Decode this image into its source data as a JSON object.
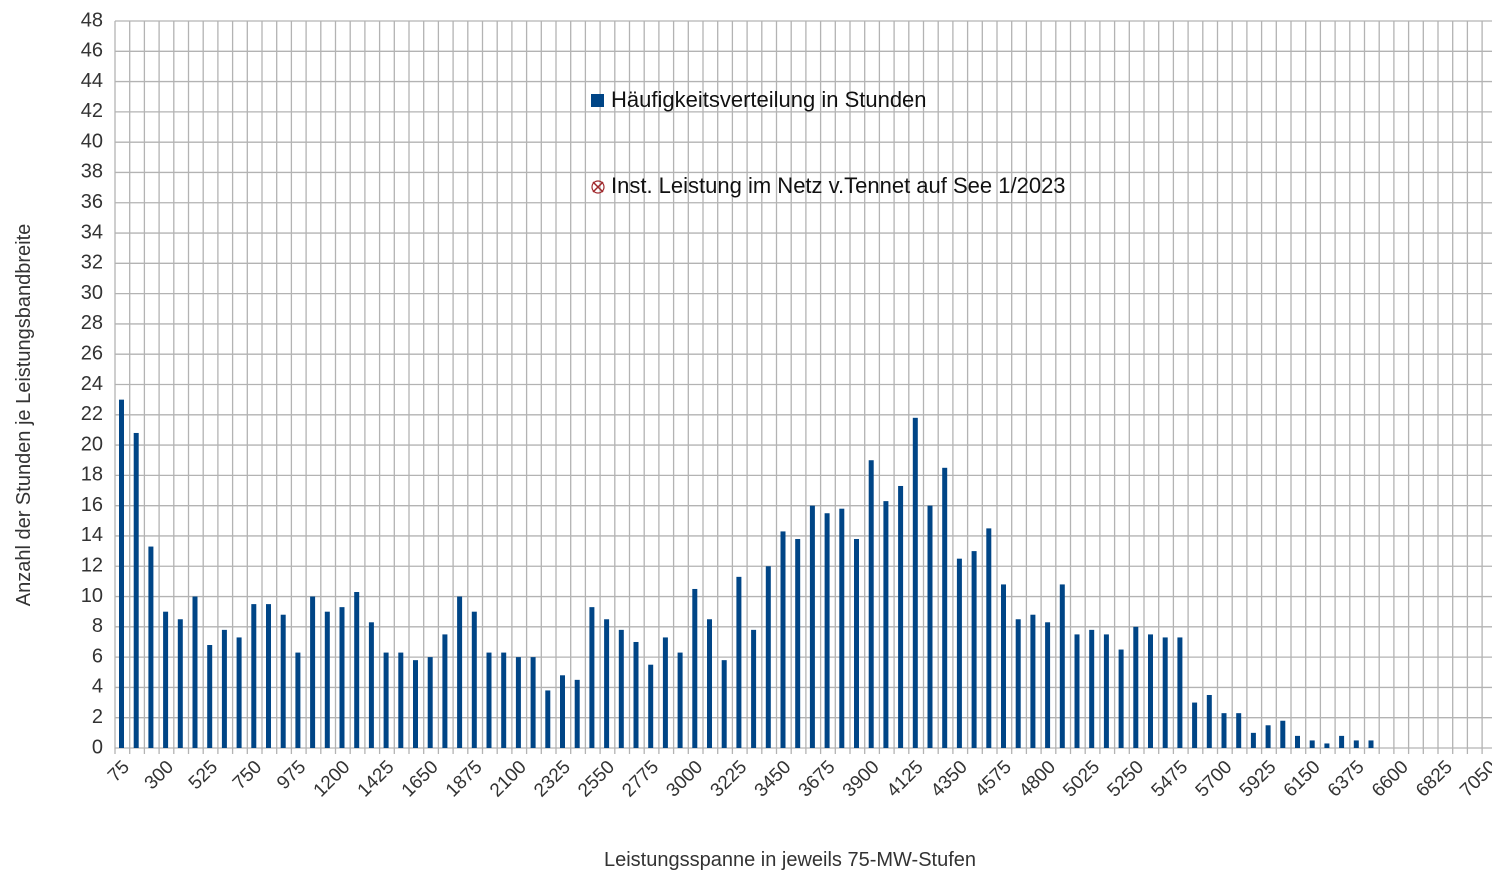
{
  "chart_data": {
    "type": "bar",
    "x_label": "Leistungsspanne in jeweils 75-MW-Stufen",
    "y_label": "Anzahl der Stunden je Leistungsbandbreite",
    "categories": [
      "75",
      null,
      null,
      "300",
      null,
      null,
      "525",
      null,
      null,
      "750",
      null,
      null,
      "975",
      null,
      null,
      "1200",
      null,
      null,
      "1425",
      null,
      null,
      "1650",
      null,
      null,
      "1875",
      null,
      null,
      "2100",
      null,
      null,
      "2325",
      null,
      null,
      "2550",
      null,
      null,
      "2775",
      null,
      null,
      "3000",
      null,
      null,
      "3225",
      null,
      null,
      "3450",
      null,
      null,
      "3675",
      null,
      null,
      "3900",
      null,
      null,
      "4125",
      null,
      null,
      "4350",
      null,
      null,
      "4575",
      null,
      null,
      "4800",
      null,
      null,
      "5025",
      null,
      null,
      "5250",
      null,
      null,
      "5475",
      null,
      null,
      "5700",
      null,
      null,
      "5925",
      null,
      null,
      "6150",
      null,
      null,
      "6375",
      null,
      null,
      "6600",
      null,
      null,
      "6825",
      null,
      null,
      "7050"
    ],
    "series": [
      {
        "name": "Häufigkeitsverteilung in Stunden",
        "color": "#004586",
        "values": [
          23,
          20.8,
          13.3,
          9,
          8.5,
          10,
          6.8,
          7.8,
          7.3,
          9.5,
          9.5,
          8.8,
          6.3,
          10,
          9,
          9.3,
          10.3,
          8.3,
          6.3,
          6.3,
          5.8,
          6,
          7.5,
          10,
          9,
          6.3,
          6.3,
          6,
          6,
          3.8,
          4.8,
          4.5,
          9.3,
          8.5,
          7.8,
          7,
          5.5,
          7.3,
          6.3,
          10.5,
          8.5,
          5.8,
          11.3,
          7.8,
          12,
          14.3,
          13.8,
          16,
          15.5,
          15.8,
          13.8,
          19,
          16.3,
          17.3,
          21.8,
          16,
          18.5,
          12.5,
          13,
          14.5,
          10.8,
          8.5,
          8.8,
          8.3,
          10.8,
          7.5,
          7.8,
          7.5,
          6.5,
          8,
          7.5,
          7.3,
          7.3,
          3,
          3.5,
          2.3,
          2.3,
          1,
          1.5,
          1.8,
          0.8,
          0.5,
          0.3,
          0.8,
          0.5,
          0.5,
          0,
          0,
          0,
          0,
          0,
          0,
          0,
          0
        ]
      },
      {
        "name": "Inst. Leistung im Netz v.Tennet auf See 1/2023",
        "type": "scatter",
        "color": "#a0282c",
        "values": [
          null,
          null,
          null,
          null,
          null,
          null,
          null,
          null,
          null,
          null,
          null,
          null,
          null,
          null,
          null,
          null,
          null,
          null,
          null,
          null,
          null,
          null,
          null,
          null,
          null,
          null,
          null,
          null,
          null,
          null,
          null,
          null,
          null,
          null,
          null,
          null,
          null,
          null,
          null,
          null,
          null,
          null,
          null,
          null,
          null,
          null,
          null,
          null,
          null,
          null,
          null,
          null,
          null,
          null,
          null,
          null,
          null,
          null,
          null,
          null,
          null,
          null,
          null,
          null,
          null,
          null,
          null,
          null,
          null,
          null,
          null,
          null,
          null,
          null,
          null,
          null,
          null,
          null,
          null,
          null,
          null,
          null,
          null,
          null,
          null,
          null,
          null,
          null,
          null,
          null,
          null,
          null,
          null,
          null
        ]
      }
    ],
    "ylim": [
      0,
      48
    ],
    "yticks": [
      0,
      2,
      4,
      6,
      8,
      10,
      12,
      14,
      16,
      18,
      20,
      22,
      24,
      26,
      28,
      30,
      32,
      34,
      36,
      38,
      40,
      42,
      44,
      46,
      48
    ],
    "grid": true
  }
}
